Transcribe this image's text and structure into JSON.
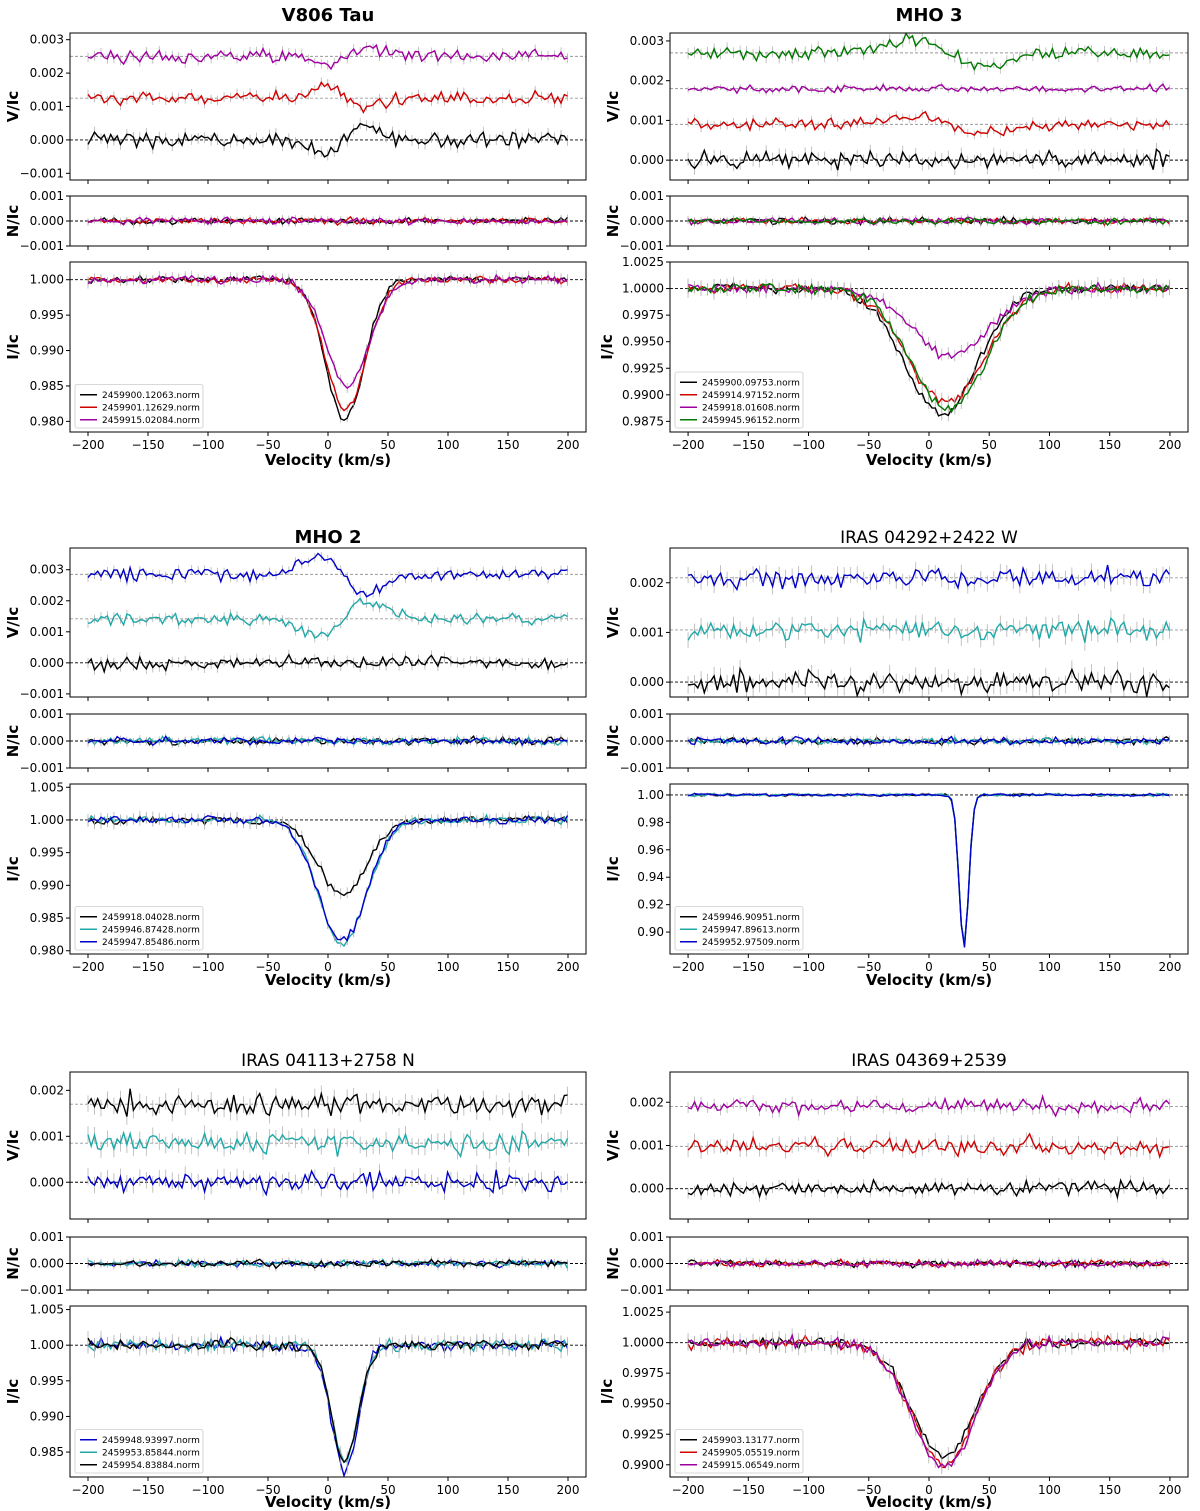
{
  "figure": {
    "description_colors": {
      "black": "#000000",
      "red": "#d00000",
      "purple": "#a000a0",
      "green": "#007800",
      "cyan": "#20a8a8",
      "blue": "#0000c8",
      "errorbar": "#b4b4b4"
    }
  },
  "chart_data": [
    {
      "type": "line",
      "title": "V806 Tau",
      "title_bold": true,
      "xlabel": "Velocity (km/s)",
      "xlim": [
        -215,
        215
      ],
      "xticks": [
        -200,
        -150,
        -100,
        -50,
        0,
        50,
        100,
        150,
        200
      ],
      "xtick_labels": [
        "−200",
        "−150",
        "−100",
        "−50",
        "0",
        "50",
        "100",
        "150",
        "200"
      ],
      "panels": {
        "V": {
          "ylabel": "V/Ic",
          "ylim": [
            -0.0012,
            0.0032
          ],
          "yticks": [
            -0.001,
            0,
            0.001,
            0.002,
            0.003
          ],
          "ytick_labels": [
            "−0.001",
            "0.000",
            "0.001",
            "0.002",
            "0.003"
          ],
          "offsets": [
            0,
            0.00125,
            0.0025
          ]
        },
        "N": {
          "ylabel": "N/Ic",
          "ylim": [
            -0.001,
            0.001
          ],
          "yticks": [
            -0.001,
            0,
            0.001
          ],
          "ytick_labels": [
            "−0.001",
            "0.000",
            "0.001"
          ]
        },
        "I": {
          "ylabel": "I/Ic",
          "ylim": [
            0.9785,
            1.0025
          ],
          "yticks": [
            0.98,
            0.985,
            0.99,
            0.995,
            1.0
          ],
          "ytick_labels": [
            "0.980",
            "0.985",
            "0.990",
            "0.995",
            "1.000"
          ]
        }
      },
      "legend": "lower-left",
      "series": [
        {
          "name": "2459900.12063.norm",
          "color": "#000000",
          "depth": 0.0198,
          "center": 14,
          "width": 16,
          "vfeature": -0.0005,
          "vnoise": 0.00018,
          "inoise": 0.0004
        },
        {
          "name": "2459901.12629.norm",
          "color": "#d00000",
          "depth": 0.0183,
          "center": 15,
          "width": 17,
          "vfeature": 0.00035,
          "vnoise": 0.00016,
          "inoise": 0.0004
        },
        {
          "name": "2459915.02084.norm",
          "color": "#a000a0",
          "depth": 0.015,
          "center": 16,
          "width": 18,
          "vfeature": -0.00025,
          "vnoise": 0.00016,
          "inoise": 0.0005
        }
      ]
    },
    {
      "type": "line",
      "title": "MHO 3",
      "title_bold": true,
      "xlabel": "Velocity (km/s)",
      "xlim": [
        -215,
        215
      ],
      "xticks": [
        -200,
        -150,
        -100,
        -50,
        0,
        50,
        100,
        150,
        200
      ],
      "xtick_labels": [
        "−200",
        "−150",
        "−100",
        "−50",
        "0",
        "50",
        "100",
        "150",
        "200"
      ],
      "panels": {
        "V": {
          "ylabel": "V/Ic",
          "ylim": [
            -0.0005,
            0.0032
          ],
          "yticks": [
            0,
            0.001,
            0.002,
            0.003
          ],
          "ytick_labels": [
            "0.000",
            "0.001",
            "0.002",
            "0.003"
          ],
          "offsets": [
            0,
            0.0009,
            0.0018,
            0.0027
          ]
        },
        "N": {
          "ylabel": "N/Ic",
          "ylim": [
            -0.001,
            0.001
          ],
          "yticks": [
            -0.001,
            0,
            0.001
          ],
          "ytick_labels": [
            "−0.001",
            "0.000",
            "0.001"
          ]
        },
        "I": {
          "ylabel": "I/Ic",
          "ylim": [
            0.9865,
            1.0025
          ],
          "yticks": [
            0.9875,
            0.99,
            0.9925,
            0.995,
            0.9975,
            1.0,
            1.0025
          ],
          "ytick_labels": [
            "0.9875",
            "0.9900",
            "0.9925",
            "0.9950",
            "0.9975",
            "1.0000",
            "1.0025"
          ]
        }
      },
      "legend": "lower-left",
      "series": [
        {
          "name": "2459900.09753.norm",
          "color": "#000000",
          "depth": 0.0118,
          "center": 10,
          "width": 30,
          "vfeature": 0.0,
          "vnoise": 0.00018,
          "inoise": 0.0004
        },
        {
          "name": "2459914.97152.norm",
          "color": "#d00000",
          "depth": 0.0108,
          "center": 14,
          "width": 32,
          "vfeature": 0.0002,
          "vnoise": 0.00012,
          "inoise": 0.0004
        },
        {
          "name": "2459918.01608.norm",
          "color": "#a000a0",
          "depth": 0.0063,
          "center": 18,
          "width": 32,
          "vfeature": 0.0,
          "vnoise": 8e-05,
          "inoise": 0.0004
        },
        {
          "name": "2459945.96152.norm",
          "color": "#007800",
          "depth": 0.0113,
          "center": 16,
          "width": 31,
          "vfeature": 0.00035,
          "vnoise": 0.00015,
          "inoise": 0.0004
        }
      ]
    },
    {
      "type": "line",
      "title": "MHO 2",
      "title_bold": true,
      "xlabel": "Velocity (km/s)",
      "xlim": [
        -215,
        215
      ],
      "xticks": [
        -200,
        -150,
        -100,
        -50,
        0,
        50,
        100,
        150,
        200
      ],
      "xtick_labels": [
        "−200",
        "−150",
        "−100",
        "−50",
        "0",
        "50",
        "100",
        "150",
        "200"
      ],
      "panels": {
        "V": {
          "ylabel": "V/Ic",
          "ylim": [
            -0.0011,
            0.0037
          ],
          "yticks": [
            -0.001,
            0,
            0.001,
            0.002,
            0.003
          ],
          "ytick_labels": [
            "−0.001",
            "0.000",
            "0.001",
            "0.002",
            "0.003"
          ],
          "offsets": [
            0,
            0.00142,
            0.00285
          ]
        },
        "N": {
          "ylabel": "N/Ic",
          "ylim": [
            -0.001,
            0.001
          ],
          "yticks": [
            -0.001,
            0,
            0.001
          ],
          "ytick_labels": [
            "−0.001",
            "0.000",
            "0.001"
          ]
        },
        "I": {
          "ylabel": "I/Ic",
          "ylim": [
            0.9795,
            1.0055
          ],
          "yticks": [
            0.98,
            0.985,
            0.99,
            0.995,
            1.0,
            1.005
          ],
          "ytick_labels": [
            "0.980",
            "0.985",
            "0.990",
            "0.995",
            "1.000",
            "1.005"
          ]
        }
      },
      "legend": "lower-left",
      "series": [
        {
          "name": "2459918.04028.norm",
          "color": "#000000",
          "depth": 0.0115,
          "center": 12,
          "width": 20,
          "vfeature": 0.0,
          "vnoise": 0.00018,
          "inoise": 0.0006
        },
        {
          "name": "2459946.87428.norm",
          "color": "#20a8a8",
          "depth": 0.019,
          "center": 12,
          "width": 20,
          "vfeature": -0.0006,
          "vnoise": 0.00016,
          "inoise": 0.0005
        },
        {
          "name": "2459947.85486.norm",
          "color": "#0000c8",
          "depth": 0.0185,
          "center": 12,
          "width": 20,
          "vfeature": 0.0006,
          "vnoise": 0.00016,
          "inoise": 0.0005
        }
      ]
    },
    {
      "type": "line",
      "title": "IRAS 04292+2422 W",
      "title_bold": false,
      "xlabel": "Velocity (km/s)",
      "xlim": [
        -215,
        215
      ],
      "xticks": [
        -200,
        -150,
        -100,
        -50,
        0,
        50,
        100,
        150,
        200
      ],
      "xtick_labels": [
        "−200",
        "−150",
        "−100",
        "−50",
        "0",
        "50",
        "100",
        "150",
        "200"
      ],
      "panels": {
        "V": {
          "ylabel": "V/Ic",
          "ylim": [
            -0.0003,
            0.0027
          ],
          "yticks": [
            0,
            0.001,
            0.002
          ],
          "ytick_labels": [
            "0.000",
            "0.001",
            "0.002"
          ],
          "offsets": [
            0,
            0.00105,
            0.0021
          ]
        },
        "N": {
          "ylabel": "N/Ic",
          "ylim": [
            -0.001,
            0.001
          ],
          "yticks": [
            -0.001,
            0,
            0.001
          ],
          "ytick_labels": [
            "−0.001",
            "0.000",
            "0.001"
          ]
        },
        "I": {
          "ylabel": "I/Ic",
          "ylim": [
            0.884,
            1.008
          ],
          "yticks": [
            0.9,
            0.92,
            0.94,
            0.96,
            0.98,
            1.0
          ],
          "ytick_labels": [
            "0.90",
            "0.92",
            "0.94",
            "0.96",
            "0.98",
            "1.00"
          ]
        }
      },
      "legend": "lower-left",
      "series": [
        {
          "name": "2459946.90951.norm",
          "color": "#000000",
          "depth": 0.11,
          "center": 29,
          "width": 4,
          "vfeature": 0.0,
          "vnoise": 0.0002,
          "inoise": 0.0008
        },
        {
          "name": "2459947.89613.norm",
          "color": "#20a8a8",
          "depth": 0.11,
          "center": 29,
          "width": 4,
          "vfeature": 0.0,
          "vnoise": 0.00018,
          "inoise": 0.0008
        },
        {
          "name": "2459952.97509.norm",
          "color": "#0000c8",
          "depth": 0.111,
          "center": 29,
          "width": 4,
          "vfeature": 0.0,
          "vnoise": 0.00018,
          "inoise": 0.0008
        }
      ]
    },
    {
      "type": "line",
      "title": "IRAS 04113+2758 N",
      "title_bold": false,
      "xlabel": "Velocity (km/s)",
      "xlim": [
        -215,
        215
      ],
      "xticks": [
        -200,
        -150,
        -100,
        -50,
        0,
        50,
        100,
        150,
        200
      ],
      "xtick_labels": [
        "−200",
        "−150",
        "−100",
        "−50",
        "0",
        "50",
        "100",
        "150",
        "200"
      ],
      "panels": {
        "V": {
          "ylabel": "V/Ic",
          "ylim": [
            -0.0008,
            0.0024
          ],
          "yticks": [
            0,
            0.001,
            0.002
          ],
          "ytick_labels": [
            "0.000",
            "0.001",
            "0.002"
          ],
          "offsets": [
            0,
            0.00085,
            0.0017
          ]
        },
        "N": {
          "ylabel": "N/Ic",
          "ylim": [
            -0.001,
            0.001
          ],
          "yticks": [
            -0.001,
            0,
            0.001
          ],
          "ytick_labels": [
            "−0.001",
            "0.000",
            "0.001"
          ]
        },
        "I": {
          "ylabel": "I/Ic",
          "ylim": [
            0.9815,
            1.0055
          ],
          "yticks": [
            0.985,
            0.99,
            0.995,
            1.0,
            1.005
          ],
          "ytick_labels": [
            "0.985",
            "0.990",
            "0.995",
            "1.000",
            "1.005"
          ]
        }
      },
      "legend": "lower-left",
      "series": [
        {
          "name": "2459948.93997.norm",
          "color": "#0000c8",
          "depth": 0.0175,
          "center": 14,
          "width": 11,
          "vfeature": 0.0,
          "vnoise": 0.0002,
          "inoise": 0.0007
        },
        {
          "name": "2459953.85844.norm",
          "color": "#20a8a8",
          "depth": 0.016,
          "center": 14,
          "width": 11,
          "vfeature": 0.0,
          "vnoise": 0.0002,
          "inoise": 0.0007
        },
        {
          "name": "2459954.83884.norm",
          "color": "#000000",
          "depth": 0.0165,
          "center": 14,
          "width": 11,
          "vfeature": 0.0,
          "vnoise": 0.0002,
          "inoise": 0.0007
        }
      ]
    },
    {
      "type": "line",
      "title": "IRAS 04369+2539",
      "title_bold": false,
      "xlabel": "Velocity (km/s)",
      "xlim": [
        -215,
        215
      ],
      "xticks": [
        -200,
        -150,
        -100,
        -50,
        0,
        50,
        100,
        150,
        200
      ],
      "xtick_labels": [
        "−200",
        "−150",
        "−100",
        "−50",
        "0",
        "50",
        "100",
        "150",
        "200"
      ],
      "panels": {
        "V": {
          "ylabel": "V/Ic",
          "ylim": [
            -0.0007,
            0.0027
          ],
          "yticks": [
            0,
            0.001,
            0.002
          ],
          "ytick_labels": [
            "0.000",
            "0.001",
            "0.002"
          ],
          "offsets": [
            0,
            0.00098,
            0.0019
          ]
        },
        "N": {
          "ylabel": "N/Ic",
          "ylim": [
            -0.001,
            0.001
          ],
          "yticks": [
            -0.001,
            0,
            0.001
          ],
          "ytick_labels": [
            "−0.001",
            "0.000",
            "0.001"
          ]
        },
        "I": {
          "ylabel": "I/Ic",
          "ylim": [
            0.989,
            1.003
          ],
          "yticks": [
            0.99,
            0.9925,
            0.995,
            0.9975,
            1.0,
            1.0025
          ],
          "ytick_labels": [
            "0.9900",
            "0.9925",
            "0.9950",
            "0.9975",
            "1.0000",
            "1.0025"
          ]
        }
      },
      "legend": "lower-left",
      "series": [
        {
          "name": "2459903.13177.norm",
          "color": "#000000",
          "depth": 0.0093,
          "center": 12,
          "width": 26,
          "vfeature": 0.0,
          "vnoise": 0.00014,
          "inoise": 0.0004
        },
        {
          "name": "2459905.05519.norm",
          "color": "#d00000",
          "depth": 0.01,
          "center": 12,
          "width": 26,
          "vfeature": 0.0,
          "vnoise": 0.00018,
          "inoise": 0.0004
        },
        {
          "name": "2459915.06549.norm",
          "color": "#a000a0",
          "depth": 0.0102,
          "center": 12,
          "width": 26,
          "vfeature": 0.0,
          "vnoise": 0.00014,
          "inoise": 0.0004
        }
      ]
    }
  ]
}
